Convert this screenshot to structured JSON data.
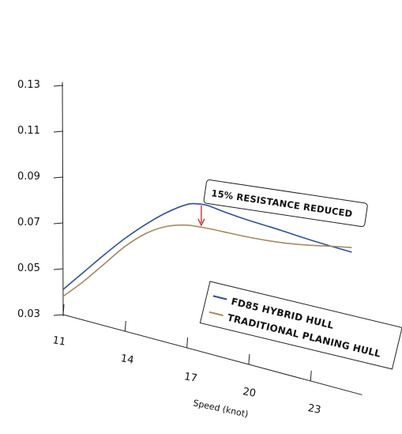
{
  "chart_data": {
    "type": "line",
    "title": "",
    "xlabel": "Speed (knot)",
    "ylabel": "",
    "x_ticks": [
      11,
      14,
      17,
      20,
      23
    ],
    "y_ticks": [
      "0.03",
      "0.05",
      "0.07",
      "0.09",
      "0.11",
      "0.13"
    ],
    "xlim": [
      11,
      25.5
    ],
    "ylim": [
      0.03,
      0.13
    ],
    "grid": false,
    "legend_position": "bottom-right",
    "series": [
      {
        "name": "FD85 HYBRID HULL",
        "color": "#2f4f9e",
        "x": [
          11,
          12,
          13,
          14,
          15,
          16,
          17,
          17.5,
          18,
          19,
          20,
          21,
          22,
          23,
          24,
          25
        ],
        "y": [
          0.041,
          0.051,
          0.061,
          0.0705,
          0.079,
          0.0865,
          0.0925,
          0.094,
          0.0945,
          0.0935,
          0.0928,
          0.0925,
          0.092,
          0.0915,
          0.0912,
          0.091
        ]
      },
      {
        "name": "TRADITIONAL PLANING HULL",
        "color": "#a58a5e",
        "x": [
          11,
          12,
          13,
          14,
          15,
          16,
          17,
          18,
          19,
          20,
          21,
          22,
          23,
          24,
          25
        ],
        "y": [
          0.038,
          0.047,
          0.057,
          0.067,
          0.075,
          0.0805,
          0.0835,
          0.0845,
          0.085,
          0.0855,
          0.0863,
          0.0875,
          0.0892,
          0.0912,
          0.093
        ]
      }
    ],
    "annotation": {
      "text": "15% RESISTANCE REDUCED",
      "arrow_x": 17.7,
      "arrow_from": 0.0945,
      "arrow_to": 0.0848,
      "arrow_color": "#cc2222"
    }
  }
}
